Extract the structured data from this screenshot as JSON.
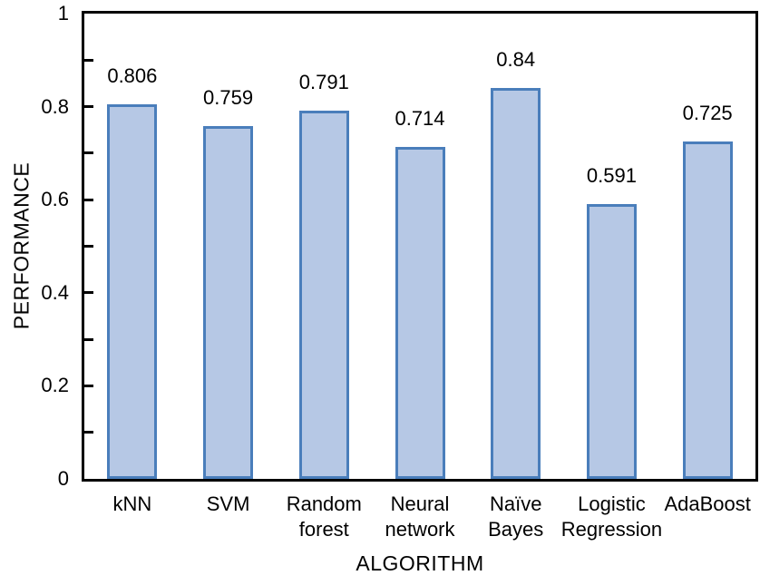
{
  "chart_data": {
    "type": "bar",
    "title": "",
    "xlabel": "ALGORITHM",
    "ylabel": "PERFORMANCE",
    "categories": [
      "kNN",
      "SVM",
      "Random forest",
      "Neural network",
      "Naïve Bayes",
      "Logistic Regression",
      "AdaBoost"
    ],
    "category_lines": [
      [
        "kNN"
      ],
      [
        "SVM"
      ],
      [
        "Random",
        "forest"
      ],
      [
        "Neural",
        "network"
      ],
      [
        "Naïve",
        "Bayes"
      ],
      [
        "Logistic",
        "Regression"
      ],
      [
        "AdaBoost"
      ]
    ],
    "values": [
      0.806,
      0.759,
      0.791,
      0.714,
      0.84,
      0.591,
      0.725
    ],
    "value_labels": [
      "0.806",
      "0.759",
      "0.791",
      "0.714",
      "0.84",
      "0.591",
      "0.725"
    ],
    "ylim": [
      0,
      1
    ],
    "y_major_ticks": [
      0,
      0.2,
      0.4,
      0.6,
      0.8,
      1
    ],
    "y_tick_labels": [
      "0",
      "0.2",
      "0.4",
      "0.6",
      "0.8",
      "1"
    ],
    "y_minor_step": 0.1,
    "grid": false,
    "legend": false,
    "colors": {
      "bar_fill": "#b6c8e5",
      "bar_border": "#4a7ebb",
      "axis": "#000000",
      "text": "#000000"
    }
  }
}
